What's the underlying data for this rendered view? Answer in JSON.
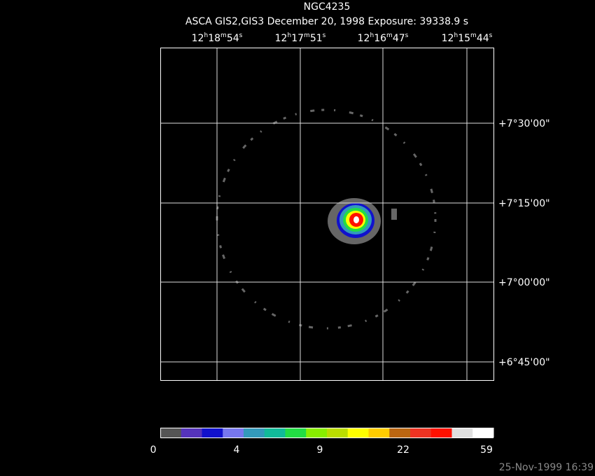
{
  "header": {
    "title": "NGC4235",
    "subtitle": "ASCA GIS2,GIS3 December 20, 1998 Exposure: 39338.9 s"
  },
  "ra_labels": [
    "12h18m54s",
    "12h17m51s",
    "12h16m47s",
    "12h15m44s"
  ],
  "dec_labels": [
    "+7°30'00\"",
    "+7°15'00\"",
    "+7°00'00\"",
    "+6°45'00\""
  ],
  "colorbar": {
    "colors": [
      "#555555",
      "#5533bb",
      "#1111cc",
      "#7777ee",
      "#3399bb",
      "#11bb99",
      "#22dd44",
      "#88ee00",
      "#bbdd00",
      "#ffff00",
      "#ffcc00",
      "#bb6611",
      "#ee3322",
      "#ff1100",
      "#e0e0e0",
      "#ffffff"
    ],
    "labels": [
      "0",
      "4",
      "9",
      "22",
      "59"
    ]
  },
  "timestamp": "25-Nov-1999 16:39"
}
